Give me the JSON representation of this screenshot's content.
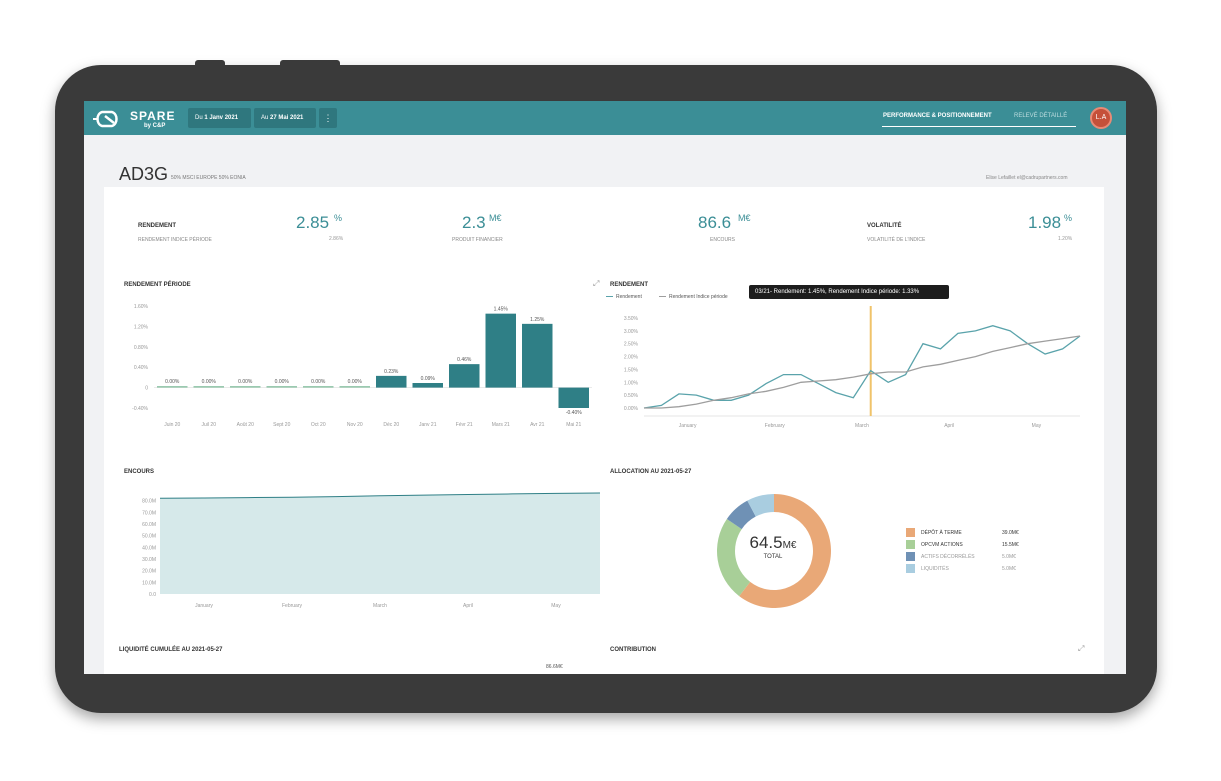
{
  "header": {
    "logo_text": "SPARE",
    "logo_sub": "by C&P",
    "date_from_prefix": "Du",
    "date_from": "1 Janv 2021",
    "date_to_prefix": "Au",
    "date_to": "27 Mai 2021",
    "more_icon": "vertical-dots",
    "nav": [
      "PERFORMANCE & POSITIONNEMENT",
      "RELEVÉ DÉTAILLÉ"
    ],
    "avatar_initials": "L.A"
  },
  "page": {
    "title": "AD3G",
    "subtitle": "50% MSCI EUROPE 50% EONIA",
    "email": "Elise Lefaillet el@cadrupartners.com"
  },
  "kpis": [
    {
      "label": "RENDEMENT",
      "sub": "RENDEMENT INDICE PÉRIODE",
      "value": "2.85",
      "unit": "%",
      "small": "2.86%"
    },
    {
      "label": "",
      "sub": "PRODUIT FINANCIER",
      "value": "2.3",
      "unit": "M€",
      "small": ""
    },
    {
      "label": "",
      "sub": "ENCOURS",
      "value": "86.6",
      "unit": "M€",
      "small": ""
    },
    {
      "label": "VOLATILITÉ",
      "sub": "VOLATILITÉ DE L'INDICE",
      "value": "1.98",
      "unit": "%",
      "small": "1.20%"
    }
  ],
  "sections": {
    "rendement_periode": "RENDEMENT PÉRIODE",
    "rendement": "RENDEMENT",
    "encours": "ENCOURS",
    "allocation": "ALLOCATION AU 2021-05-27",
    "liquidite": "LIQUIDITÉ CUMULÉE AU 2021-05-27",
    "contribution": "CONTRIBUTION",
    "liquidite_value": "86.6M€"
  },
  "tooltip": "03/21- Rendement: 1.45%, Rendement Indice période: 1.33%",
  "legend": [
    "Rendement",
    "Rendement Indice période"
  ],
  "colors": {
    "accent": "#3b8e96",
    "rendement_line": "#5aa3ab",
    "index_line": "#9e9e9e",
    "highlight": "#f0c36a",
    "bar": "#2f7f86",
    "area": "#d6e9ea"
  },
  "chart_data": [
    {
      "type": "bar",
      "title": "RENDEMENT PÉRIODE",
      "categories": [
        "Juin 20",
        "Juil 20",
        "Août 20",
        "Sept 20",
        "Oct 20",
        "Nov 20",
        "Déc 20",
        "Janv 21",
        "Févr 21",
        "Mars 21",
        "Avr 21",
        "Mai 21"
      ],
      "values": [
        0.0,
        0.0,
        0.0,
        0.0,
        0.0,
        0.0,
        0.23,
        0.09,
        0.46,
        1.45,
        1.25,
        -0.4
      ],
      "value_labels": [
        "0.00%",
        "0.00%",
        "0.00%",
        "0.00%",
        "0.00%",
        "0.00%",
        "0.23%",
        "0.09%",
        "0.46%",
        "1.45%",
        "1.25%",
        "-0.40%"
      ],
      "yticks": [
        "1.60%",
        "1.20%",
        "0.80%",
        "0.40%",
        "0",
        "-0.40%"
      ],
      "ylim": [
        -0.4,
        1.6
      ]
    },
    {
      "type": "line",
      "title": "RENDEMENT",
      "xticks": [
        "January",
        "February",
        "March",
        "April",
        "May"
      ],
      "yticks": [
        "3.50%",
        "3.00%",
        "2.50%",
        "2.00%",
        "1.50%",
        "1.00%",
        "0.50%",
        "0.00%"
      ],
      "ylim": [
        0,
        3.5
      ],
      "x": [
        0,
        4,
        8,
        12,
        16,
        20,
        24,
        28,
        32,
        36,
        40,
        44,
        48,
        52,
        56,
        60,
        64,
        68,
        72,
        76,
        80,
        84,
        88,
        92,
        96,
        100
      ],
      "series": [
        {
          "name": "Rendement",
          "values": [
            0.0,
            0.1,
            0.55,
            0.5,
            0.3,
            0.3,
            0.5,
            0.95,
            1.3,
            1.3,
            0.95,
            0.6,
            0.4,
            1.45,
            1.0,
            1.3,
            2.5,
            2.3,
            2.9,
            3.0,
            3.2,
            3.0,
            2.5,
            2.1,
            2.3,
            2.8
          ]
        },
        {
          "name": "Rendement Indice période",
          "values": [
            0.0,
            0.0,
            0.05,
            0.15,
            0.3,
            0.4,
            0.55,
            0.65,
            0.8,
            1.0,
            1.05,
            1.1,
            1.2,
            1.33,
            1.4,
            1.4,
            1.6,
            1.7,
            1.85,
            2.0,
            2.2,
            2.35,
            2.5,
            2.6,
            2.7,
            2.8
          ]
        }
      ],
      "highlight_x": 52
    },
    {
      "type": "area",
      "title": "ENCOURS",
      "xticks": [
        "January",
        "February",
        "March",
        "April",
        "May"
      ],
      "yticks": [
        "80.0M",
        "70.0M",
        "60.0M",
        "50.0M",
        "40.0M",
        "30.0M",
        "20.0M",
        "10.0M",
        "0.0"
      ],
      "ylim": [
        0,
        90
      ],
      "x": [
        0,
        10,
        20,
        30,
        40,
        50,
        60,
        70,
        80,
        90,
        100
      ],
      "values": [
        82.0,
        82.3,
        82.6,
        82.9,
        83.5,
        84.2,
        84.8,
        85.3,
        85.8,
        86.2,
        86.6
      ]
    },
    {
      "type": "pie",
      "title": "ALLOCATION AU 2021-05-27",
      "total_value": "64.5",
      "total_unit": "M€",
      "total_label": "TOTAL",
      "slices": [
        {
          "name": "DÉPÔT À TERME",
          "value": 39.0,
          "label": "39.0M€",
          "color": "#e9a877"
        },
        {
          "name": "OPCVM ACTIONS",
          "value": 15.5,
          "label": "15.5M€",
          "color": "#a8cf98"
        },
        {
          "name": "ACTIFS DÉCORRÉLÉS",
          "value": 5.0,
          "label": "5.0M€",
          "color": "#6f91b5"
        },
        {
          "name": "LIQUIDITÉS",
          "value": 5.0,
          "label": "5.0M€",
          "color": "#a9cde0"
        }
      ]
    }
  ]
}
